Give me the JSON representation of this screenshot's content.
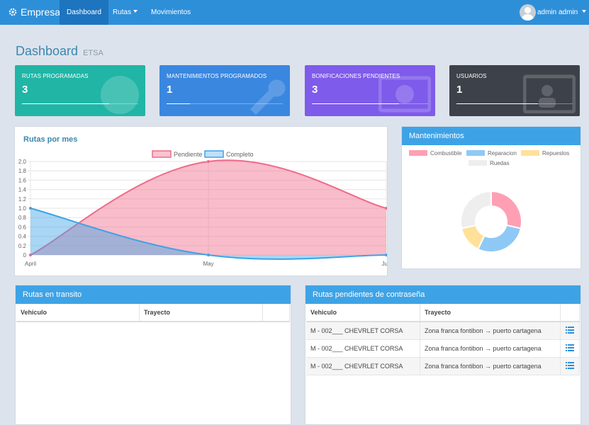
{
  "nav": {
    "brand": "Empresa",
    "items": [
      {
        "label": "Dashboard",
        "active": true
      },
      {
        "label": "Rutas",
        "dropdown": true
      },
      {
        "label": "Movimientos"
      }
    ],
    "user": "admin admin"
  },
  "page": {
    "title": "Dashboard",
    "subtitle": "ETSA"
  },
  "stats": [
    {
      "label": "RUTAS PROGRAMADAS",
      "value": "3",
      "color": "#21b5a6",
      "icon": "globe-icon",
      "progress": 0.75
    },
    {
      "label": "MANTENIMIENTOS PROGRAMADOS",
      "value": "1",
      "color": "#3a87e0",
      "icon": "wrench-icon",
      "progress": 0.2
    },
    {
      "label": "BONIFICACIONES PENDIENTES",
      "value": "3",
      "color": "#7e5bea",
      "icon": "money-icon",
      "progress": 0.75
    },
    {
      "label": "USUARIOS",
      "value": "1",
      "color": "#3d4149",
      "icon": "id-card-icon",
      "progress": 0.7
    }
  ],
  "rutas_chart": {
    "title": "Rutas por mes",
    "legend": [
      {
        "name": "Pendiente",
        "color": "#f06a8a"
      },
      {
        "name": "Completo",
        "color": "#3ea3e6"
      }
    ]
  },
  "mant_chart": {
    "title": "Mantenimientos",
    "legend": [
      {
        "name": "Combustible",
        "color": "#ff9fb3"
      },
      {
        "name": "Reparacion",
        "color": "#8ec9f5"
      },
      {
        "name": "Repuestos",
        "color": "#ffe199"
      },
      {
        "name": "Ruedas",
        "color": "#eeeeee"
      }
    ]
  },
  "chart_data": [
    {
      "type": "area",
      "title": "Rutas por mes",
      "categories": [
        "April",
        "May",
        "June"
      ],
      "tick_labels_x": [
        "April",
        "May",
        "Ju"
      ],
      "ylim": [
        0,
        2
      ],
      "yticks": [
        "0",
        "0.2",
        "0.4",
        "0.6",
        "0.8",
        "1.0",
        "1.2",
        "1.4",
        "1.6",
        "1.8",
        "2.0"
      ],
      "series": [
        {
          "name": "Pendiente",
          "values": [
            0,
            2,
            1
          ],
          "color": "#f06a8a"
        },
        {
          "name": "Completo",
          "values": [
            1,
            0,
            0
          ],
          "color": "#3ea3e6"
        }
      ],
      "legend": "top"
    },
    {
      "type": "pie",
      "title": "Mantenimientos",
      "donut": true,
      "categories": [
        "Combustible",
        "Reparacion",
        "Repuestos",
        "Ruedas"
      ],
      "values": [
        1,
        1,
        0.5,
        1
      ],
      "colors": [
        "#ff9fb3",
        "#8ec9f5",
        "#ffe199",
        "#eeeeee"
      ],
      "legend": "top"
    }
  ],
  "transito": {
    "title": "Rutas en transito",
    "columns": [
      "Vehiculo",
      "Trayecto",
      ""
    ]
  },
  "pendientes": {
    "title": "Rutas pendientes de contraseña",
    "columns": [
      "Vehiculo",
      "Trayecto",
      ""
    ],
    "rows": [
      {
        "vehiculo": "M - 002___ CHEVRLET CORSA",
        "trayecto": "Zona franca fontibon → puerto cartagena"
      },
      {
        "vehiculo": "M - 002___ CHEVRLET CORSA",
        "trayecto": "Zona franca fontibon → puerto cartagena"
      },
      {
        "vehiculo": "M - 002___ CHEVRLET CORSA",
        "trayecto": "Zona franca fontibon → puerto cartagena"
      }
    ]
  }
}
